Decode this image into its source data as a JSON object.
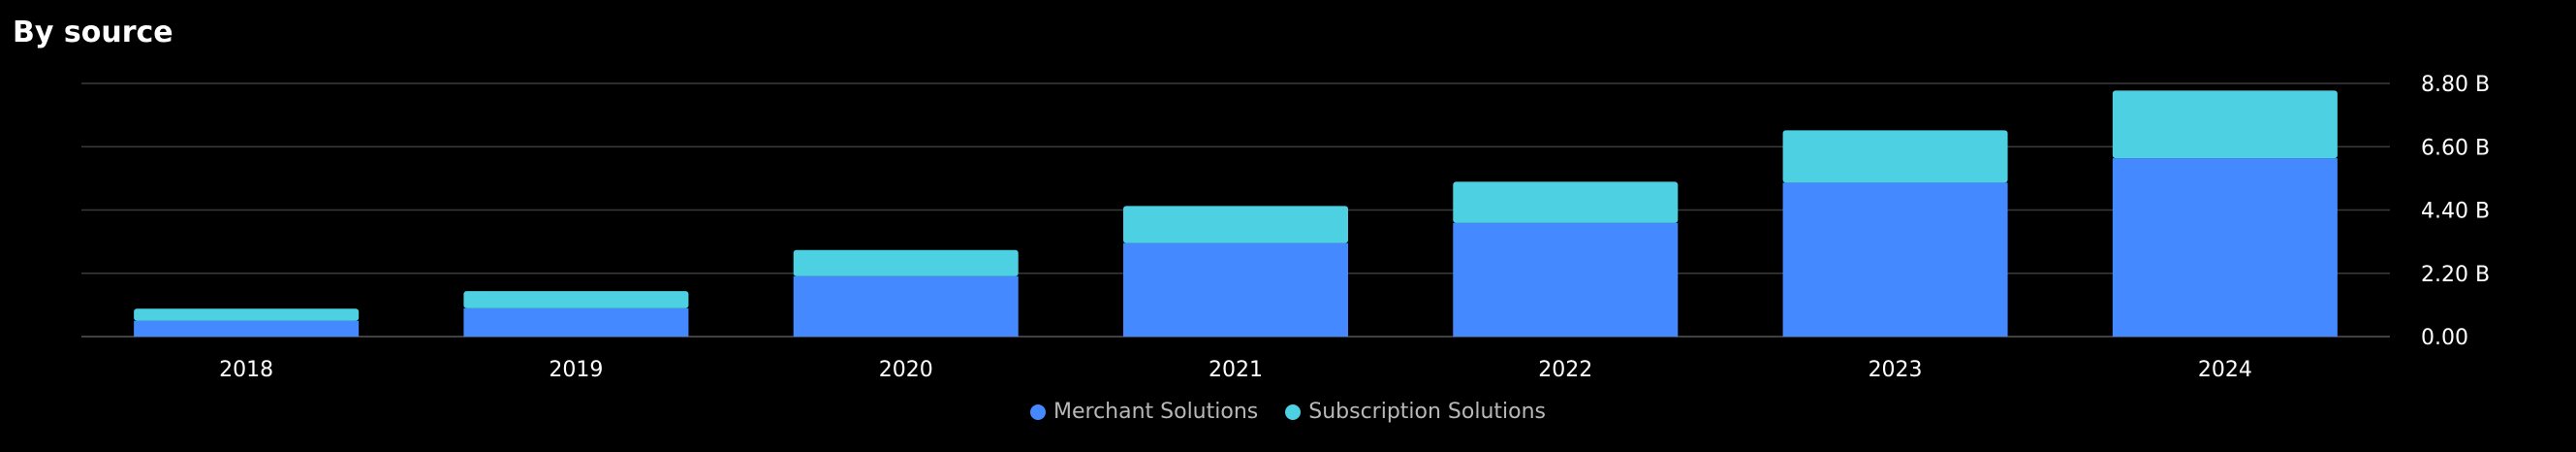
{
  "title": "By source",
  "colors": {
    "background": "#000000",
    "grid": "#3a3a3a",
    "merchant": "#4489ff",
    "subscription": "#4dd0e1"
  },
  "chart_data": {
    "type": "bar",
    "stacked": true,
    "title": "By source",
    "categories": [
      "2018",
      "2019",
      "2020",
      "2021",
      "2022",
      "2023",
      "2024"
    ],
    "series": [
      {
        "name": "Merchant Solutions",
        "values": [
          0.55,
          0.98,
          2.1,
          3.25,
          3.95,
          5.35,
          6.2
        ]
      },
      {
        "name": "Subscription Solutions",
        "values": [
          0.42,
          0.6,
          0.91,
          1.29,
          1.43,
          1.82,
          2.35
        ]
      }
    ],
    "y_axis": {
      "position": "right",
      "ticks": [
        0,
        2.2,
        4.4,
        6.6,
        8.8
      ],
      "tick_labels": [
        "0.00",
        "2.20 B",
        "4.40 B",
        "6.60 B",
        "8.80 B"
      ],
      "ylim": [
        0,
        8.8
      ]
    },
    "grid": true,
    "legend": "bottom-center"
  }
}
